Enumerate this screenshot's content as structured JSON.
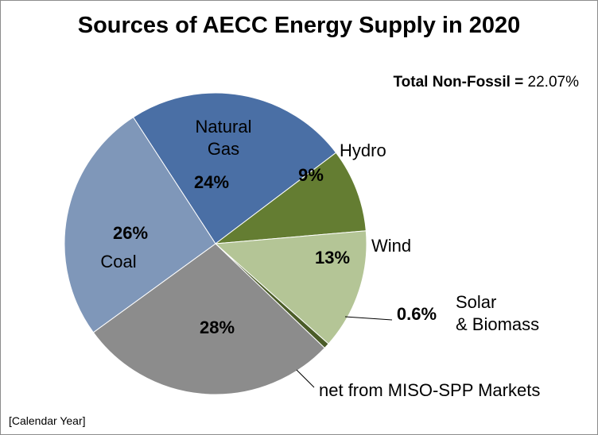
{
  "chart_data": {
    "type": "pie",
    "title": "Sources of AECC Energy Supply in 2020",
    "annotation": {
      "label": "Total Non-Fossil = ",
      "value": "22.07%"
    },
    "footer": "[Calendar Year]",
    "slices": [
      {
        "label": "Natural Gas",
        "name_lines": [
          "Natural",
          "Gas"
        ],
        "value": 24,
        "pct_label": "24%",
        "color": "#4a6fa5"
      },
      {
        "label": "Hydro",
        "name_lines": [
          "Hydro"
        ],
        "value": 9,
        "pct_label": "9%",
        "color": "#647d32"
      },
      {
        "label": "Wind",
        "name_lines": [
          "Wind"
        ],
        "value": 13,
        "pct_label": "13%",
        "color": "#b4c596"
      },
      {
        "label": "Solar & Biomass",
        "name_lines": [
          "Solar",
          "& Biomass"
        ],
        "value": 0.6,
        "pct_label": "0.6%",
        "color": "#4b5c28"
      },
      {
        "label": "net from MISO-SPP Markets",
        "name_lines": [
          "net from MISO-SPP Markets"
        ],
        "value": 28,
        "pct_label": "28%",
        "color": "#8c8c8c"
      },
      {
        "label": "Coal",
        "name_lines": [
          "Coal"
        ],
        "value": 26,
        "pct_label": "26%",
        "color": "#7f97b9"
      }
    ]
  }
}
